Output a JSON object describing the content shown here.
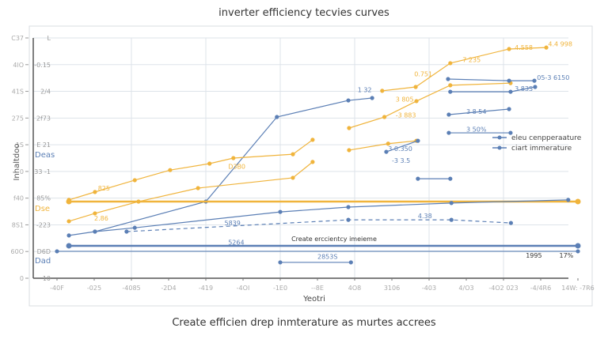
{
  "chart_data": {
    "type": "line",
    "title": "inverter efficiency tecvies curves",
    "caption": "Create efficien drep inmterature as murtes accrees",
    "xlabel": "Yeotri",
    "ylabel": "Inhaltdoo",
    "xlim": [
      0,
      14
    ],
    "ylim": [
      0,
      10
    ],
    "grid": true,
    "legend_position": "right",
    "x_tick_labels": [
      "-40F",
      "-025",
      "-4085",
      "-2D4",
      "-419",
      "-4OI",
      "-1E0",
      "--8E",
      "4O8",
      "3106",
      "-403",
      "4/O3",
      "-4O2 023",
      "-4/4R6",
      "14W: -7R6"
    ],
    "y_tick_labels_outer": [
      "0",
      "60O",
      "8S1",
      "f40",
      "0",
      "1S",
      "275",
      "41S",
      "4lO",
      "C37"
    ],
    "y_tick_labels_inner": [
      "10",
      "D6D",
      "-223",
      "85%",
      "33 -1",
      "E 21",
      "2f73",
      "2/4",
      "-0.15",
      "L"
    ],
    "y_side_markers": [
      "Dad",
      "Dse",
      "Deas"
    ],
    "legend": [
      "eleu cenpperaature",
      "ciart immerature"
    ],
    "colors": {
      "blue": "#5b7fb5",
      "orange": "#f0b43c",
      "grid": "#dde3ea",
      "axis": "#555555"
    },
    "series": [
      {
        "name": "eleu cenpperaature",
        "color": "blue",
        "dash": false,
        "points": [
          [
            0.32,
            1.78
          ],
          [
            1.02,
            1.94
          ],
          [
            4.0,
            3.19
          ],
          [
            5.91,
            6.71
          ],
          [
            7.83,
            7.4
          ],
          [
            8.47,
            7.5
          ]
        ]
      },
      {
        "color": "orange",
        "dash": false,
        "points": [
          [
            0.32,
            3.26
          ],
          [
            1.02,
            3.59
          ],
          [
            2.09,
            4.08
          ],
          [
            3.04,
            4.5
          ],
          [
            4.1,
            4.77
          ],
          [
            4.74,
            5.0
          ],
          [
            6.34,
            5.16
          ],
          [
            6.87,
            5.76
          ]
        ]
      },
      {
        "color": "orange",
        "dash": false,
        "points": [
          [
            0.32,
            2.37
          ],
          [
            1.02,
            2.7
          ],
          [
            2.19,
            3.19
          ],
          [
            3.79,
            3.75
          ],
          [
            6.34,
            4.18
          ],
          [
            6.87,
            4.84
          ]
        ]
      },
      {
        "color": "orange",
        "dash": false,
        "thick": true,
        "points": [
          [
            0.32,
            3.19
          ],
          [
            14,
            3.19
          ]
        ]
      },
      {
        "name": "ciart immerature",
        "color": "blue",
        "dash": false,
        "points": [
          [
            1.02,
            1.94
          ],
          [
            2.09,
            2.1
          ],
          [
            6.0,
            2.76
          ],
          [
            7.83,
            2.96
          ],
          [
            10.6,
            3.13
          ],
          [
            13.74,
            3.26
          ]
        ]
      },
      {
        "color": "blue",
        "dash": true,
        "points": [
          [
            1.87,
            1.94
          ],
          [
            7.83,
            2.43
          ],
          [
            10.6,
            2.43
          ],
          [
            12.2,
            2.3
          ]
        ]
      },
      {
        "color": "blue",
        "dash": false,
        "thick": true,
        "points": [
          [
            0.32,
            1.35
          ],
          [
            14,
            1.35
          ]
        ]
      },
      {
        "color": "blue",
        "dash": false,
        "points": [
          [
            0,
            1.12
          ],
          [
            14,
            1.12
          ]
        ]
      },
      {
        "color": "blue",
        "dash": false,
        "points": [
          [
            6.0,
            0.66
          ],
          [
            7.9,
            0.66
          ]
        ]
      },
      {
        "color": "orange",
        "dash": false,
        "points": [
          [
            8.74,
            7.8
          ],
          [
            9.64,
            7.96
          ],
          [
            10.57,
            8.95
          ],
          [
            12.15,
            9.54
          ],
          [
            13.15,
            9.6
          ]
        ]
      },
      {
        "color": "orange",
        "dash": false,
        "points": [
          [
            7.85,
            6.25
          ],
          [
            8.8,
            6.71
          ],
          [
            9.66,
            7.37
          ],
          [
            10.57,
            8.03
          ],
          [
            12.19,
            8.12
          ]
        ]
      },
      {
        "color": "orange",
        "dash": false,
        "points": [
          [
            7.85,
            5.33
          ],
          [
            8.9,
            5.6
          ],
          [
            9.66,
            5.72
          ]
        ]
      },
      {
        "color": "blue",
        "dash": false,
        "points": [
          [
            10.51,
            8.29
          ],
          [
            12.15,
            8.22
          ],
          [
            12.83,
            8.22
          ]
        ]
      },
      {
        "color": "blue",
        "dash": false,
        "points": [
          [
            10.57,
            7.76
          ],
          [
            12.19,
            7.76
          ],
          [
            12.85,
            7.96
          ]
        ]
      },
      {
        "color": "blue",
        "dash": false,
        "points": [
          [
            10.53,
            6.81
          ],
          [
            12.15,
            7.04
          ]
        ]
      },
      {
        "color": "blue",
        "dash": false,
        "points": [
          [
            10.53,
            6.05
          ],
          [
            12.19,
            6.05
          ]
        ]
      },
      {
        "color": "blue",
        "dash": false,
        "points": [
          [
            8.85,
            5.26
          ],
          [
            9.7,
            5.72
          ]
        ]
      },
      {
        "color": "blue",
        "dash": false,
        "points": [
          [
            9.7,
            4.14
          ],
          [
            10.57,
            4.14
          ]
        ]
      }
    ],
    "annotations": [
      {
        "text": "Create erccientcy imeieme",
        "x": 6.3,
        "y": 1.55,
        "color": "#333333"
      },
      {
        "text": "2853S",
        "x": 7.0,
        "y": 0.8,
        "color": "blue"
      },
      {
        "text": "1995",
        "x": 12.6,
        "y": 0.85,
        "color": "#333333"
      },
      {
        "text": "17%",
        "x": 13.5,
        "y": 0.85,
        "color": "#333333"
      },
      {
        "text": "D3B0",
        "x": 4.6,
        "y": 4.55,
        "color": "orange"
      },
      {
        "text": "5839",
        "x": 4.5,
        "y": 2.2,
        "color": "blue"
      },
      {
        "text": "5264",
        "x": 4.6,
        "y": 1.4,
        "color": "blue"
      },
      {
        "text": "4.4 998",
        "x": 13.2,
        "y": 9.65,
        "color": "orange"
      },
      {
        "text": "4.558",
        "x": 12.3,
        "y": 9.5,
        "color": "orange"
      },
      {
        "text": "7 235",
        "x": 10.9,
        "y": 9.0,
        "color": "orange"
      },
      {
        "text": "0.751",
        "x": 9.6,
        "y": 8.4,
        "color": "orange"
      },
      {
        "text": "3 805",
        "x": 9.1,
        "y": 7.35,
        "color": "orange"
      },
      {
        "text": "-3 883",
        "x": 9.1,
        "y": 6.7,
        "color": "orange"
      },
      {
        "text": "05-3 6150",
        "x": 12.9,
        "y": 8.25,
        "color": "blue"
      },
      {
        "text": "3 83S",
        "x": 12.3,
        "y": 7.8,
        "color": "blue"
      },
      {
        "text": "3 8 54",
        "x": 11.0,
        "y": 6.85,
        "color": "blue"
      },
      {
        "text": "3 50%",
        "x": 11.0,
        "y": 6.1,
        "color": "blue"
      },
      {
        "text": "3 0.350",
        "x": 8.9,
        "y": 5.3,
        "color": "blue"
      },
      {
        "text": "-3 3.5",
        "x": 9.0,
        "y": 4.8,
        "color": "blue"
      },
      {
        "text": "1 32",
        "x": 8.5,
        "y": 7.45,
        "color": "blue"
      },
      {
        "text": "825",
        "x": 1.1,
        "y": 3.65,
        "color": "orange"
      },
      {
        "text": "2.86",
        "x": 1.0,
        "y": 2.4,
        "color": "orange"
      },
      {
        "text": "4.38",
        "x": 9.7,
        "y": 2.5,
        "color": "blue"
      }
    ]
  }
}
